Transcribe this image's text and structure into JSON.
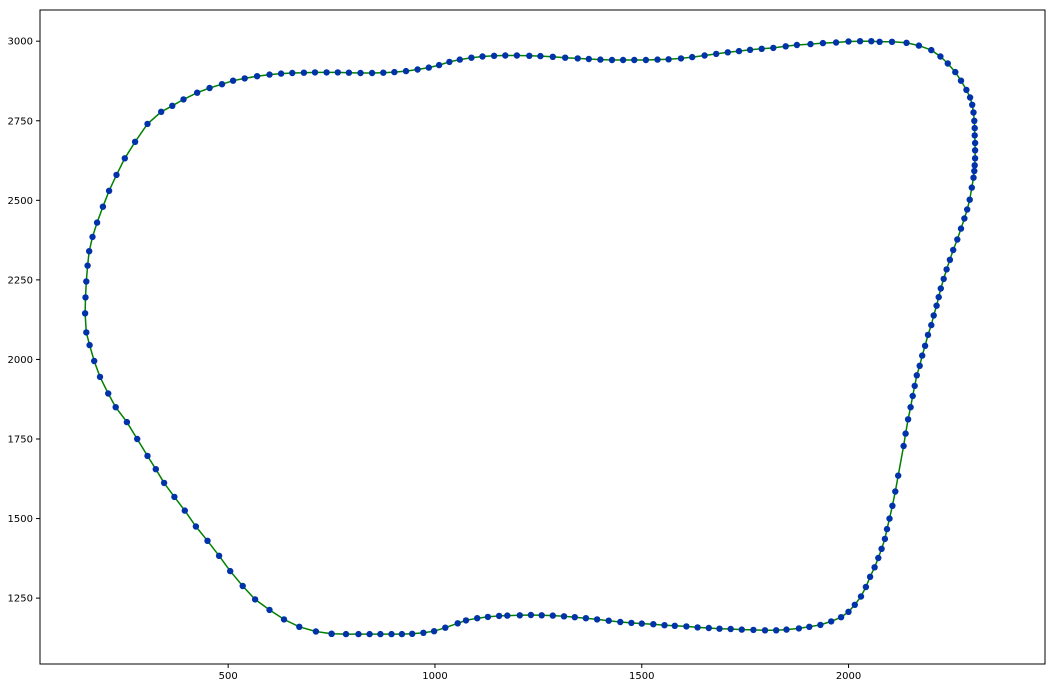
{
  "chart_data": {
    "type": "line",
    "title": "",
    "xlabel": "",
    "ylabel": "",
    "xlim": [
      45,
      2475
    ],
    "ylim": [
      1043,
      3098
    ],
    "x_ticks": [
      500,
      1000,
      1500,
      2000
    ],
    "x_tick_labels": [
      "500",
      "1000",
      "1500",
      "2000"
    ],
    "y_ticks": [
      1250,
      1500,
      1750,
      2000,
      2250,
      2500,
      2750,
      3000
    ],
    "y_tick_labels": [
      "1250",
      "1500",
      "1750",
      "2000",
      "2250",
      "2500",
      "2750",
      "3000"
    ],
    "grid": false,
    "legend": "none",
    "line_color": "#008000",
    "marker_color": "#0033aa",
    "series": [
      {
        "points": [
          [
            750,
            1138
          ],
          [
            785,
            1137
          ],
          [
            815,
            1137
          ],
          [
            842,
            1137
          ],
          [
            868,
            1137
          ],
          [
            895,
            1137
          ],
          [
            920,
            1137
          ],
          [
            945,
            1138
          ],
          [
            972,
            1141
          ],
          [
            998,
            1146
          ],
          [
            1025,
            1157
          ],
          [
            1055,
            1171
          ],
          [
            1075,
            1180
          ],
          [
            1102,
            1187
          ],
          [
            1128,
            1191
          ],
          [
            1155,
            1194
          ],
          [
            1175,
            1195
          ],
          [
            1205,
            1196
          ],
          [
            1232,
            1197
          ],
          [
            1258,
            1196
          ],
          [
            1285,
            1195
          ],
          [
            1312,
            1193
          ],
          [
            1338,
            1190
          ],
          [
            1365,
            1187
          ],
          [
            1392,
            1183
          ],
          [
            1420,
            1179
          ],
          [
            1448,
            1175
          ],
          [
            1475,
            1172
          ],
          [
            1500,
            1170
          ],
          [
            1528,
            1168
          ],
          [
            1555,
            1165
          ],
          [
            1580,
            1163
          ],
          [
            1608,
            1161
          ],
          [
            1635,
            1158
          ],
          [
            1662,
            1156
          ],
          [
            1688,
            1154
          ],
          [
            1715,
            1153
          ],
          [
            1742,
            1151
          ],
          [
            1770,
            1150
          ],
          [
            1798,
            1149
          ],
          [
            1825,
            1149
          ],
          [
            1850,
            1151
          ],
          [
            1880,
            1155
          ],
          [
            1905,
            1160
          ],
          [
            1932,
            1166
          ],
          [
            1958,
            1177
          ],
          [
            1982,
            1190
          ],
          [
            2000,
            1207
          ],
          [
            2015,
            1229
          ],
          [
            2030,
            1255
          ],
          [
            2042,
            1285
          ],
          [
            2052,
            1317
          ],
          [
            2063,
            1347
          ],
          [
            2072,
            1376
          ],
          [
            2080,
            1405
          ],
          [
            2088,
            1436
          ],
          [
            2093,
            1467
          ],
          [
            2099,
            1500
          ],
          [
            2106,
            1540
          ],
          [
            2113,
            1585
          ],
          [
            2120,
            1635
          ],
          [
            2133,
            1728
          ],
          [
            2138,
            1767
          ],
          [
            2144,
            1812
          ],
          [
            2150,
            1850
          ],
          [
            2155,
            1885
          ],
          [
            2160,
            1917
          ],
          [
            2165,
            1950
          ],
          [
            2172,
            1980
          ],
          [
            2178,
            2012
          ],
          [
            2185,
            2043
          ],
          [
            2192,
            2077
          ],
          [
            2200,
            2108
          ],
          [
            2206,
            2138
          ],
          [
            2213,
            2169
          ],
          [
            2218,
            2196
          ],
          [
            2223,
            2223
          ],
          [
            2230,
            2253
          ],
          [
            2237,
            2283
          ],
          [
            2245,
            2313
          ],
          [
            2253,
            2344
          ],
          [
            2263,
            2377
          ],
          [
            2272,
            2411
          ],
          [
            2280,
            2443
          ],
          [
            2287,
            2471
          ],
          [
            2293,
            2502
          ],
          [
            2298,
            2540
          ],
          [
            2302,
            2571
          ],
          [
            2304,
            2592
          ],
          [
            2305,
            2610
          ],
          [
            2306,
            2632
          ],
          [
            2306,
            2657
          ],
          [
            2306,
            2680
          ],
          [
            2305,
            2704
          ],
          [
            2305,
            2727
          ],
          [
            2304,
            2750
          ],
          [
            2302,
            2776
          ],
          [
            2299,
            2800
          ],
          [
            2294,
            2823
          ],
          [
            2285,
            2847
          ],
          [
            2272,
            2876
          ],
          [
            2258,
            2903
          ],
          [
            2240,
            2930
          ],
          [
            2222,
            2952
          ],
          [
            2200,
            2972
          ],
          [
            2170,
            2986
          ],
          [
            2140,
            2995
          ],
          [
            2105,
            2998
          ],
          [
            2075,
            2998
          ],
          [
            2055,
            3000
          ],
          [
            2028,
            3000
          ],
          [
            2000,
            2999
          ],
          [
            1970,
            2996
          ],
          [
            1938,
            2994
          ],
          [
            1908,
            2991
          ],
          [
            1875,
            2988
          ],
          [
            1848,
            2984
          ],
          [
            1818,
            2979
          ],
          [
            1790,
            2976
          ],
          [
            1762,
            2973
          ],
          [
            1735,
            2969
          ],
          [
            1708,
            2965
          ],
          [
            1680,
            2960
          ],
          [
            1652,
            2955
          ],
          [
            1622,
            2950
          ],
          [
            1595,
            2946
          ],
          [
            1565,
            2943
          ],
          [
            1538,
            2942
          ],
          [
            1510,
            2941
          ],
          [
            1482,
            2941
          ],
          [
            1455,
            2941
          ],
          [
            1428,
            2941
          ],
          [
            1400,
            2942
          ],
          [
            1372,
            2944
          ],
          [
            1345,
            2946
          ],
          [
            1315,
            2948
          ],
          [
            1285,
            2951
          ],
          [
            1255,
            2953
          ],
          [
            1228,
            2954
          ],
          [
            1198,
            2955
          ],
          [
            1170,
            2955
          ],
          [
            1143,
            2954
          ],
          [
            1115,
            2952
          ],
          [
            1088,
            2948
          ],
          [
            1060,
            2942
          ],
          [
            1035,
            2935
          ],
          [
            1010,
            2925
          ],
          [
            985,
            2917
          ],
          [
            958,
            2911
          ],
          [
            930,
            2906
          ],
          [
            902,
            2903
          ],
          [
            875,
            2901
          ],
          [
            848,
            2900
          ],
          [
            820,
            2900
          ],
          [
            792,
            2901
          ],
          [
            765,
            2902
          ],
          [
            738,
            2902
          ],
          [
            710,
            2902
          ],
          [
            683,
            2901
          ],
          [
            655,
            2900
          ],
          [
            628,
            2898
          ],
          [
            600,
            2895
          ],
          [
            570,
            2890
          ],
          [
            540,
            2883
          ],
          [
            512,
            2876
          ],
          [
            485,
            2865
          ],
          [
            455,
            2853
          ],
          [
            425,
            2838
          ],
          [
            392,
            2817
          ],
          [
            365,
            2797
          ],
          [
            338,
            2778
          ],
          [
            305,
            2740
          ],
          [
            275,
            2684
          ],
          [
            250,
            2632
          ],
          [
            230,
            2580
          ],
          [
            212,
            2530
          ],
          [
            197,
            2480
          ],
          [
            183,
            2430
          ],
          [
            172,
            2385
          ],
          [
            164,
            2340
          ],
          [
            160,
            2295
          ],
          [
            157,
            2245
          ],
          [
            155,
            2195
          ],
          [
            154,
            2145
          ],
          [
            157,
            2085
          ],
          [
            165,
            2045
          ],
          [
            176,
            1995
          ],
          [
            190,
            1945
          ],
          [
            210,
            1893
          ],
          [
            228,
            1850
          ],
          [
            255,
            1803
          ],
          [
            280,
            1750
          ],
          [
            305,
            1697
          ],
          [
            325,
            1655
          ],
          [
            345,
            1612
          ],
          [
            370,
            1568
          ],
          [
            395,
            1525
          ],
          [
            422,
            1475
          ],
          [
            450,
            1430
          ],
          [
            478,
            1383
          ],
          [
            505,
            1335
          ],
          [
            535,
            1288
          ],
          [
            565,
            1246
          ],
          [
            600,
            1213
          ],
          [
            635,
            1183
          ],
          [
            672,
            1160
          ],
          [
            712,
            1145
          ],
          [
            750,
            1138
          ]
        ]
      }
    ]
  }
}
